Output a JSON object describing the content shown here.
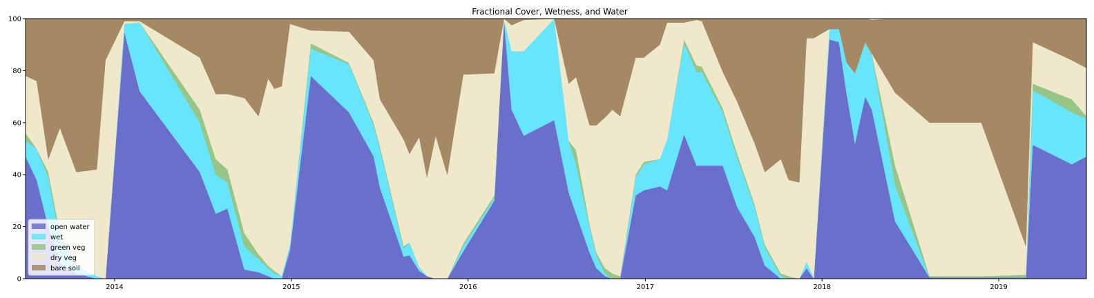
{
  "chart_data": {
    "type": "area",
    "stacked": true,
    "title": "Fractional Cover, Wetness, and Water",
    "xlabel": "",
    "ylabel": "",
    "ylim": [
      0,
      100
    ],
    "xlim": [
      "2013-07-01",
      "2019-07-01"
    ],
    "x_ticks": [
      {
        "date": "2014-01-01",
        "label": "2014"
      },
      {
        "date": "2015-01-01",
        "label": "2015"
      },
      {
        "date": "2016-01-01",
        "label": "2016"
      },
      {
        "date": "2017-01-01",
        "label": "2017"
      },
      {
        "date": "2018-01-01",
        "label": "2018"
      },
      {
        "date": "2019-01-01",
        "label": "2019"
      }
    ],
    "y_ticks": [
      0,
      20,
      40,
      60,
      80,
      100
    ],
    "grid": false,
    "legend_position": "lower-left",
    "x": [
      "2013-07-01",
      "2013-07-24",
      "2013-08-17",
      "2013-09-10",
      "2013-10-14",
      "2013-11-25",
      "2013-12-13",
      "2014-01-21",
      "2014-02-22",
      "2014-06-26",
      "2014-07-29",
      "2014-08-22",
      "2014-09-26",
      "2014-10-25",
      "2014-11-14",
      "2014-11-27",
      "2014-12-12",
      "2014-12-29",
      "2015-02-10",
      "2015-04-30",
      "2015-06-20",
      "2015-07-03",
      "2015-08-21",
      "2015-09-02",
      "2015-09-22",
      "2015-10-08",
      "2015-10-26",
      "2015-11-19",
      "2015-12-22",
      "2016-02-24",
      "2016-03-15",
      "2016-03-31",
      "2016-04-25",
      "2016-06-27",
      "2016-07-27",
      "2016-08-11",
      "2016-09-08",
      "2016-09-22",
      "2016-10-10",
      "2016-10-25",
      "2016-11-10",
      "2016-12-12",
      "2016-12-29",
      "2017-01-31",
      "2017-02-15",
      "2017-03-22",
      "2017-04-17",
      "2017-04-28",
      "2017-06-10",
      "2017-07-10",
      "2017-08-15",
      "2017-09-05",
      "2017-10-08",
      "2017-10-24",
      "2017-11-15",
      "2017-11-30",
      "2017-12-15",
      "2018-01-16",
      "2018-02-05",
      "2018-02-21",
      "2018-03-10",
      "2018-03-31",
      "2018-04-14",
      "2018-06-01",
      "2018-08-11",
      "2018-11-26",
      "2019-02-26",
      "2019-03-12",
      "2019-06-01",
      "2019-07-01"
    ],
    "series": [
      {
        "name": "open water",
        "color": "#6a6fcb",
        "values": [
          47,
          38,
          20,
          6,
          2,
          0,
          0,
          95,
          72,
          41,
          25,
          27,
          3.5,
          2.5,
          1,
          0,
          0,
          11,
          78,
          64,
          47,
          35,
          8.5,
          9,
          3,
          1,
          0,
          0,
          10.5,
          30,
          100,
          65,
          55,
          61,
          33,
          25,
          10,
          4,
          1,
          0,
          0,
          32,
          34,
          35.5,
          34,
          55.5,
          43.5,
          43.5,
          43.5,
          27.5,
          16,
          5,
          0,
          0,
          0,
          4,
          0,
          92,
          91,
          71,
          52,
          70,
          65,
          22,
          0.5,
          0.5,
          0.5,
          51.5,
          44,
          47
        ]
      },
      {
        "name": "wet",
        "color": "#66e5fc",
        "values": [
          6,
          12,
          19,
          10,
          3,
          1,
          0,
          3,
          26.5,
          19,
          15,
          10,
          9,
          5,
          3,
          2,
          1,
          2,
          10.5,
          18.5,
          12,
          15,
          3,
          5,
          1.5,
          0,
          0,
          0,
          2,
          1,
          0,
          22.5,
          32.5,
          39,
          20,
          19,
          10,
          5,
          1,
          0,
          0,
          7,
          10,
          10.5,
          19.5,
          35,
          36,
          36,
          20.5,
          19,
          11.5,
          7,
          1,
          0,
          0,
          2.5,
          0.5,
          4,
          5,
          12,
          27,
          20.5,
          21,
          14,
          0,
          0,
          0,
          21,
          20,
          14.5
        ]
      },
      {
        "name": "green veg",
        "color": "#97c585",
        "values": [
          3,
          0,
          2,
          2,
          0,
          0,
          0,
          0,
          0,
          5,
          6,
          5,
          5,
          2,
          1,
          1,
          0,
          0,
          2,
          0.5,
          1,
          1,
          1,
          0,
          0,
          0,
          0,
          0,
          1,
          1,
          0,
          0,
          0,
          0,
          0,
          5.5,
          1,
          1,
          2,
          2,
          1,
          1,
          1,
          0,
          0,
          1.5,
          2.5,
          2,
          1.5,
          1.5,
          1,
          1,
          1,
          1,
          0,
          0,
          0,
          0,
          0,
          0,
          0,
          0.5,
          0.5,
          7.5,
          0.5,
          0.5,
          1,
          2.5,
          5,
          1
        ]
      },
      {
        "name": "dry veg",
        "color": "#f0e8ca",
        "values": [
          22,
          26,
          5,
          40,
          36,
          41,
          84,
          1,
          0.5,
          20,
          25,
          29,
          52,
          53,
          72,
          70,
          73,
          85,
          5,
          12,
          24,
          18,
          41,
          34,
          50,
          38,
          55,
          40,
          65,
          47,
          0,
          10,
          12,
          0,
          22,
          28,
          38,
          49,
          58,
          63,
          61.5,
          45,
          40,
          44,
          45,
          6.5,
          17.5,
          17.5,
          14,
          20,
          23.5,
          28,
          44,
          37,
          37,
          86,
          92,
          0,
          0,
          0,
          0,
          0,
          0,
          28,
          59,
          59,
          11,
          16,
          15,
          18.5
        ]
      },
      {
        "name": "bare soil",
        "color": "#a58965",
        "values": [
          22,
          24,
          54,
          42,
          59,
          58,
          16,
          1,
          1,
          15,
          29,
          29,
          31,
          38,
          23,
          27,
          26,
          2,
          4.5,
          5,
          16,
          31,
          46.5,
          52,
          45.5,
          61,
          45,
          60,
          21.5,
          21,
          0,
          2.5,
          0.5,
          0,
          25,
          22.5,
          41,
          41,
          38,
          35,
          37.5,
          15,
          15,
          10,
          1.5,
          1.5,
          0.5,
          1,
          20.5,
          32,
          48,
          59,
          54,
          62,
          63,
          7.5,
          7.5,
          4,
          4,
          17,
          21,
          9,
          13,
          28.5,
          40,
          40,
          87.5,
          9,
          16,
          19
        ]
      }
    ]
  }
}
